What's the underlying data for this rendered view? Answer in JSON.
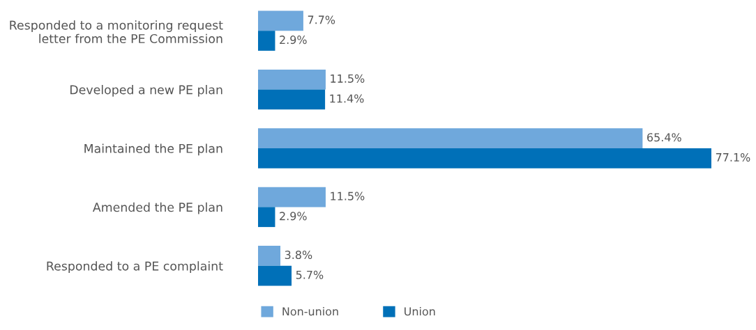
{
  "chart_data": {
    "type": "bar",
    "orientation": "horizontal",
    "categories": [
      "Responded to a monitoring request\nletter from the PE Commission",
      "Developed a new PE plan",
      "Maintained the PE plan",
      "Amended the PE plan",
      "Responded to a PE complaint"
    ],
    "series": [
      {
        "name": "Non-union",
        "color": "#6fa8dc",
        "values": [
          7.7,
          11.5,
          65.4,
          11.5,
          3.8
        ],
        "value_labels": [
          "7.7%",
          "11.5%",
          "65.4%",
          "11.5%",
          "3.8%"
        ]
      },
      {
        "name": "Union",
        "color": "#0070b8",
        "values": [
          2.9,
          11.4,
          77.1,
          2.9,
          5.7
        ],
        "value_labels": [
          "2.9%",
          "11.4%",
          "77.1%",
          "2.9%",
          "5.7%"
        ]
      }
    ],
    "legend": "bottom",
    "grid": false
  }
}
